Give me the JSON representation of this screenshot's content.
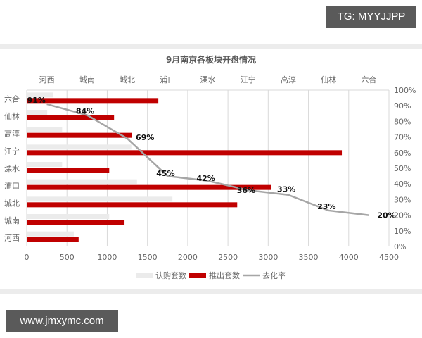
{
  "watermarks": {
    "top_right": "TG: MYYJJPP",
    "bottom_left": "www.jmxymc.com"
  },
  "colors": {
    "subscribed": "#ebebeb",
    "launched": "#c00000",
    "rate_line": "#a6a6a6",
    "grid": "#d9d9d9"
  },
  "chart_data": {
    "type": "bar",
    "orientation": "horizontal",
    "title": "9月南京各板块开盘情况",
    "categories": [
      "河西",
      "城南",
      "城北",
      "浦口",
      "溧水",
      "江宁",
      "高淳",
      "仙林",
      "六合"
    ],
    "series": [
      {
        "name": "认购套数",
        "type": "bar",
        "axis": "x-bottom",
        "values": [
          585,
          1025,
          1810,
          1370,
          440,
          1300,
          440,
          255,
          330
        ]
      },
      {
        "name": "推出套数",
        "type": "bar",
        "axis": "x-bottom",
        "values": [
          645,
          1215,
          2615,
          3040,
          1025,
          3915,
          1310,
          1085,
          1635
        ]
      },
      {
        "name": "去化率",
        "type": "line",
        "axis": "y-right",
        "x_axis": "x-top",
        "values": [
          0.91,
          0.84,
          0.69,
          0.45,
          0.42,
          0.36,
          0.33,
          0.23,
          0.2
        ],
        "labels": [
          "91%",
          "84%",
          "69%",
          "45%",
          "42%",
          "36%",
          "33%",
          "23%",
          "20%"
        ]
      }
    ],
    "x_bottom_ticks": [
      "0",
      "500",
      "1000",
      "1500",
      "2000",
      "2500",
      "3000",
      "3500",
      "4000",
      "4500"
    ],
    "x_bottom_range": [
      0,
      4500
    ],
    "x_top_labels": [
      "河西",
      "城南",
      "城北",
      "浦口",
      "溧水",
      "江宁",
      "高淳",
      "仙林",
      "六合"
    ],
    "y_left_labels_top_to_bottom": [
      "六合",
      "仙林",
      "高淳",
      "江宁",
      "溧水",
      "浦口",
      "城北",
      "城南",
      "河西"
    ],
    "y_right_ticks": [
      "100%",
      "90%",
      "80%",
      "70%",
      "60%",
      "50%",
      "40%",
      "30%",
      "20%",
      "10%",
      "0%"
    ],
    "y_right_range": [
      0,
      1
    ],
    "legend": [
      "认购套数",
      "推出套数",
      "去化率"
    ],
    "legend_position": "bottom",
    "grid": "vertical"
  }
}
